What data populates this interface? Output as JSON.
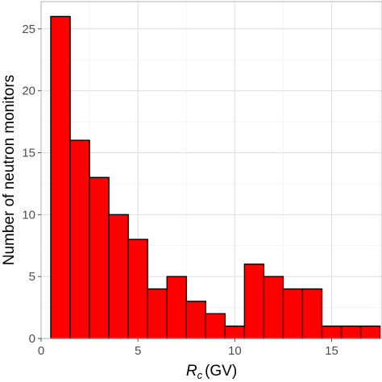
{
  "chart_data": {
    "type": "bar",
    "histogram": true,
    "bin_width": 1,
    "x": [
      1,
      2,
      3,
      4,
      5,
      6,
      7,
      8,
      9,
      10,
      11,
      12,
      13,
      14,
      15,
      16,
      17
    ],
    "values": [
      26,
      16,
      13,
      10,
      8,
      4,
      5,
      3,
      2,
      1,
      6,
      5,
      4,
      4,
      1,
      1,
      1
    ],
    "bar_color": "#ff0000",
    "bar_outline": "#000000",
    "xlabel_main": "R",
    "xlabel_sub": "c",
    "xlabel_unit": "(GV)",
    "ylabel": "Number of neutron monitors",
    "xlim": [
      0,
      17.6
    ],
    "ylim": [
      0,
      26
    ],
    "x_ticks": [
      "0",
      "5",
      "10",
      "15"
    ],
    "y_ticks": [
      "0",
      "5",
      "10",
      "15",
      "20",
      "25"
    ],
    "grid": true
  }
}
